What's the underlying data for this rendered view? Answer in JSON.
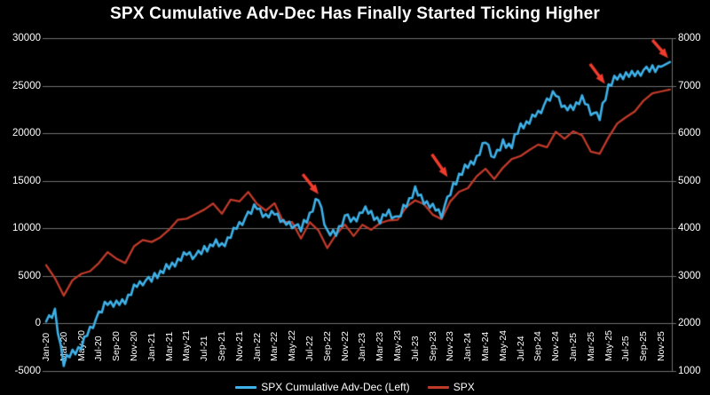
{
  "chart_data": {
    "type": "line",
    "title": "SPX Cumulative Adv-Dec Has Finally Started Ticking Higher",
    "background_color": "#000000",
    "grid": true,
    "gridline_color": "#6f6f6f",
    "text_color": "#fdfdfd",
    "legend_position": "bottom",
    "x_unit": "months",
    "x_start_month": "Jan-20",
    "x_tick_labels": [
      "Jan-20",
      "Mar-20",
      "May-20",
      "Jul-20",
      "Sep-20",
      "Nov-20",
      "Jan-21",
      "Mar-21",
      "May-21",
      "Jul-21",
      "Sep-21",
      "Nov-21",
      "Jan-22",
      "Mar-22",
      "May-22",
      "Jul-22",
      "Sep-22",
      "Nov-22",
      "Jan-23",
      "Mar-23",
      "May-23",
      "Jul-23",
      "Sep-23",
      "Nov-23",
      "Jan-24",
      "Mar-24",
      "May-24",
      "Jul-24",
      "Sep-24",
      "Nov-24",
      "Jan-25",
      "Mar-25",
      "May-25",
      "Jul-25",
      "Sep-25",
      "Nov-25"
    ],
    "x_tick_month_step": 2,
    "left_axis": {
      "min": -5000,
      "max": 30000,
      "tick_labels": [
        "30000",
        "25000",
        "20000",
        "15000",
        "10000",
        "5000",
        "0",
        "-5000"
      ]
    },
    "right_axis": {
      "min": 1000,
      "max": 8000,
      "tick_labels": [
        "8000",
        "7000",
        "6000",
        "5000",
        "4000",
        "3000",
        "2000",
        "1000"
      ]
    },
    "series": [
      {
        "name": "SPX Cumulative Adv-Dec",
        "legend_label": "SPX Cumulative Adv-Dec (Left)",
        "axis": "left",
        "color": "#3eb1e8",
        "line_width": 2.6,
        "monthly_values": [
          200,
          1100,
          -4200,
          -3000,
          -2400,
          -600,
          900,
          2300,
          1900,
          2500,
          3700,
          4400,
          4600,
          5400,
          5900,
          6700,
          7300,
          7100,
          7700,
          8400,
          8200,
          9300,
          10400,
          11400,
          12400,
          11000,
          11900,
          10500,
          10400,
          9900,
          11500,
          13100,
          9700,
          9300,
          11300,
          10700,
          11900,
          11600,
          10800,
          11700,
          10900,
          12600,
          13900,
          13000,
          12200,
          11500,
          13700,
          15600,
          16500,
          17500,
          19100,
          17400,
          18900,
          18700,
          20800,
          21300,
          22100,
          23300,
          24300,
          22400,
          22900,
          23600,
          22300,
          21600,
          25000,
          25800,
          26300,
          26100,
          26600,
          26700,
          27000,
          27500
        ],
        "jitter": {
          "pattern": [
            0.1,
            0.6,
            -0.35,
            0.75,
            -0.6,
            0.25,
            -0.45,
            0.85,
            -0.25,
            0.4,
            -0.75,
            0.2,
            -0.5,
            0.65,
            -0.15,
            0.45,
            -0.65
          ],
          "amplitude": 600,
          "subdivisions": 3
        }
      },
      {
        "name": "SPX",
        "legend_label": "SPX",
        "axis": "right",
        "color": "#c03a2a",
        "line_width": 2.3,
        "monthly_values": [
          3226,
          2954,
          2585,
          2912,
          3044,
          3100,
          3271,
          3500,
          3363,
          3270,
          3622,
          3756,
          3714,
          3811,
          3973,
          4181,
          4204,
          4298,
          4395,
          4523,
          4308,
          4605,
          4567,
          4766,
          4516,
          4374,
          4530,
          4132,
          4132,
          3785,
          4130,
          3955,
          3586,
          3872,
          4080,
          3840,
          4077,
          3970,
          4109,
          4169,
          4180,
          4450,
          4589,
          4508,
          4288,
          4194,
          4568,
          4770,
          4846,
          5096,
          5254,
          5036,
          5278,
          5460,
          5522,
          5648,
          5762,
          5705,
          6032,
          5882,
          6041,
          5955,
          5612,
          5569,
          5912,
          6205,
          6339,
          6460,
          6688,
          6840,
          6880,
          6920
        ]
      }
    ],
    "annotations": {
      "arrow_color": "#ef3c2d",
      "arrows": [
        {
          "tail_month": 29.2,
          "tail_value": 15700,
          "tip_month": 31.0,
          "tip_value": 13600
        },
        {
          "tail_month": 43.9,
          "tail_value": 17800,
          "tip_month": 45.7,
          "tip_value": 15400
        },
        {
          "tail_month": 61.9,
          "tail_value": 27300,
          "tip_month": 63.6,
          "tip_value": 25200
        },
        {
          "tail_month": 69.0,
          "tail_value": 29800,
          "tip_month": 70.8,
          "tip_value": 27900
        }
      ]
    }
  }
}
